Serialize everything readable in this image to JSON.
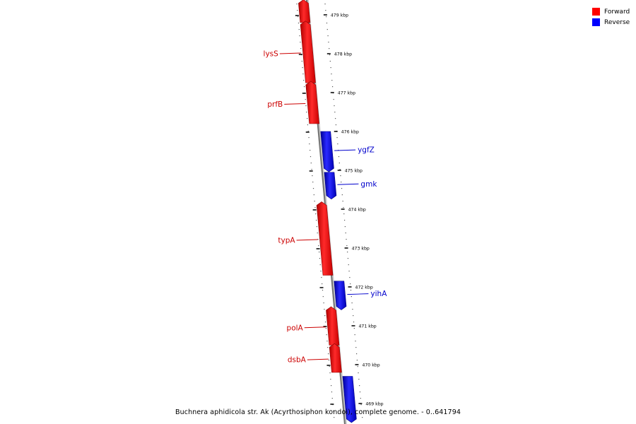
{
  "legend": {
    "items": [
      {
        "label": "Forward",
        "color": "#ff0000"
      },
      {
        "label": "Reverse",
        "color": "#0000ff"
      }
    ]
  },
  "caption": "Buchnera aphidicola str. Ak (Acyrthosiphon kondoi), complete genome. - 0..641794",
  "scale": {
    "unit": "kbp",
    "ticks": [
      479,
      478,
      477,
      476,
      475,
      474,
      473,
      472,
      471,
      470,
      469
    ]
  },
  "genes": [
    {
      "name": "",
      "strand": "forward",
      "start_kbp": 479.3,
      "end_kbp": 478.8
    },
    {
      "name": "lysS",
      "strand": "forward",
      "start_kbp": 478.75,
      "end_kbp": 477.25
    },
    {
      "name": "prfB",
      "strand": "forward",
      "start_kbp": 477.2,
      "end_kbp": 476.2
    },
    {
      "name": "ygfZ",
      "strand": "reverse",
      "start_kbp": 476.0,
      "end_kbp": 475.05
    },
    {
      "name": "gmk",
      "strand": "reverse",
      "start_kbp": 474.95,
      "end_kbp": 474.35
    },
    {
      "name": "typA",
      "strand": "forward",
      "start_kbp": 474.1,
      "end_kbp": 472.3
    },
    {
      "name": "yihA",
      "strand": "reverse",
      "start_kbp": 472.15,
      "end_kbp": 471.5
    },
    {
      "name": "polA",
      "strand": "forward",
      "start_kbp": 471.4,
      "end_kbp": 470.5
    },
    {
      "name": "dsbA",
      "strand": "forward",
      "start_kbp": 470.45,
      "end_kbp": 469.8
    },
    {
      "name": "",
      "strand": "reverse",
      "start_kbp": 469.7,
      "end_kbp": 468.6
    }
  ]
}
